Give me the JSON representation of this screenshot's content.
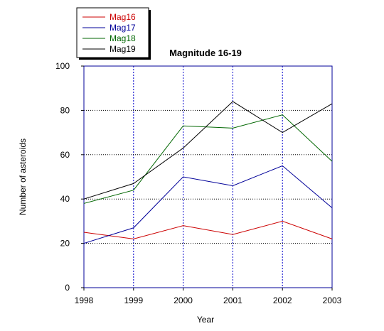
{
  "chart_data": {
    "type": "line",
    "title": "Magnitude 16-19",
    "xlabel": "Year",
    "ylabel": "Number of asteroids",
    "x": [
      1998,
      1999,
      2000,
      2001,
      2002,
      2003
    ],
    "xlim": [
      1998,
      2003
    ],
    "ylim": [
      0,
      100
    ],
    "yticks": [
      0,
      20,
      40,
      60,
      80,
      100
    ],
    "grid": true,
    "legend_position": "top-left, outside plot",
    "series": [
      {
        "name": "Mag16",
        "color": "#cc0000",
        "values": [
          25,
          22,
          28,
          24,
          30,
          22
        ]
      },
      {
        "name": "Mag17",
        "color": "#000099",
        "values": [
          20,
          27,
          50,
          46,
          55,
          36
        ]
      },
      {
        "name": "Mag18",
        "color": "#006600",
        "values": [
          38,
          44,
          73,
          72,
          78,
          57
        ]
      },
      {
        "name": "Mag19",
        "color": "#000000",
        "values": [
          40,
          47,
          63,
          84,
          70,
          83
        ]
      }
    ]
  }
}
